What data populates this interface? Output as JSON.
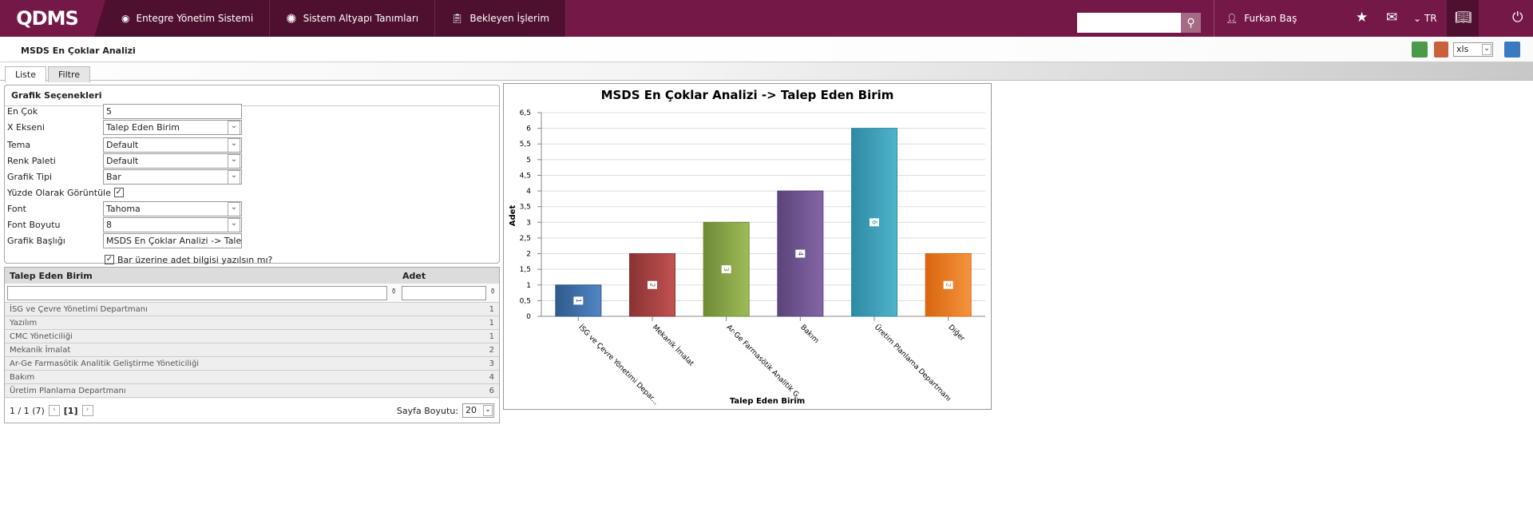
{
  "header": {
    "logo": "QDMS",
    "nav": [
      {
        "label": "Entegre Yönetim Sistemi",
        "icon": "q-icon"
      },
      {
        "label": "Sistem Altyapı Tanımları",
        "icon": "gear-icon"
      },
      {
        "label": "Bekleyen İşlerim",
        "icon": "clipboard-icon"
      }
    ],
    "user": "Furkan Baş",
    "lang": "TR"
  },
  "page": {
    "title": "MSDS En Çoklar Analizi",
    "export_format": "xls",
    "tabs": [
      "Liste",
      "Filtre"
    ]
  },
  "form": {
    "title": "Grafik Seçenekleri",
    "fields": [
      {
        "label": "En Çok",
        "value": "5",
        "type": "text"
      },
      {
        "label": "X Ekseni",
        "value": "Talep Eden Birim",
        "type": "select"
      },
      {
        "label": "Tema",
        "value": "Default",
        "type": "select"
      },
      {
        "label": "Renk Paleti",
        "value": "Default",
        "type": "select"
      },
      {
        "label": "Grafik Tipi",
        "value": "Bar",
        "type": "select"
      },
      {
        "label": "Yüzde Olarak Görüntüle",
        "value": "✓",
        "type": "check"
      },
      {
        "label": "Font",
        "value": "Tahoma",
        "type": "select"
      },
      {
        "label": "Font Boyutu",
        "value": "8",
        "type": "select"
      },
      {
        "label": "Grafik Başlığı",
        "value": "MSDS En Çoklar Analizi -> Talep Eden Birim",
        "type": "text"
      }
    ],
    "bar_label_check": "Bar üzerine adet bilgisi yazılsın mı?"
  },
  "grid": {
    "columns": [
      "Talep Eden Birim",
      "Adet"
    ],
    "rows": [
      [
        "İSG ve Çevre Yönetimi Departmanı",
        "1"
      ],
      [
        "Yazılım",
        "1"
      ],
      [
        "CMC Yöneticiliği",
        "1"
      ],
      [
        "Mekanik İmalat",
        "2"
      ],
      [
        "Ar-Ge Farmasötik Analitik Geliştirme Yöneticiliği",
        "3"
      ],
      [
        "Bakım",
        "4"
      ],
      [
        "Üretim Planlama Departmanı",
        "6"
      ]
    ],
    "pager": {
      "info": "1 / 1 (7)",
      "page": "[1]",
      "size_label": "Sayfa Boyutu:",
      "size": "20"
    }
  },
  "chart_data": {
    "type": "bar",
    "title": "MSDS En Çoklar Analizi -> Talep Eden Birim",
    "xlabel": "Talep Eden Birim",
    "ylabel": "Adet",
    "ylim": [
      0,
      6.5
    ],
    "yticks": [
      "0",
      "0,5",
      "1",
      "1,5",
      "2",
      "2,5",
      "3",
      "3,5",
      "4",
      "4,5",
      "5",
      "5,5",
      "6",
      "6,5"
    ],
    "categories": [
      "İSG ve Çevre Yönetimi Depar...",
      "Mekanik İmalat",
      "Ar-Ge Farmasötik Analitik G...",
      "Bakım",
      "Üretim Planlama Departmanı",
      "Diğer"
    ],
    "values": [
      1,
      2,
      3,
      4,
      6,
      2
    ],
    "colors": [
      [
        "#2f5a8c",
        "#5286c4"
      ],
      [
        "#8a3232",
        "#c25252"
      ],
      [
        "#6e8a34",
        "#9fbc58"
      ],
      [
        "#5a4478",
        "#8466a6"
      ],
      [
        "#2e8aa3",
        "#4fb3cc"
      ],
      [
        "#d9650f",
        "#f5943e"
      ]
    ]
  }
}
